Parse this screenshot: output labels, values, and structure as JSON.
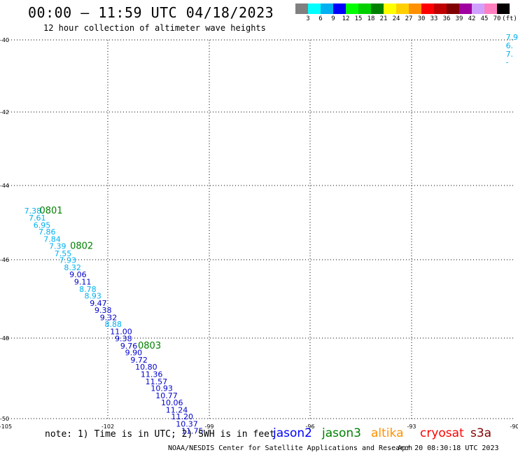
{
  "header": {
    "title": "00:00 — 11:59 UTC 04/18/2023",
    "subtitle": "12 hour collection of altimeter wave heights"
  },
  "legend": {
    "colors": [
      "#808080",
      "#00ffff",
      "#00b0f0",
      "#0000ff",
      "#00ff00",
      "#00d000",
      "#008000",
      "#ffff00",
      "#ffd000",
      "#ff9000",
      "#ff0000",
      "#c00000",
      "#800000",
      "#a000a0",
      "#d0a0ff",
      "#ff80c0",
      "#000000"
    ],
    "values": [
      "3",
      "6",
      "9",
      "12",
      "15",
      "18",
      "21",
      "24",
      "27",
      "30",
      "33",
      "36",
      "39",
      "42",
      "45",
      "70",
      "(ft)"
    ]
  },
  "footer": {
    "note": "note: 1) Time is in UTC; 2) SWH is in feet",
    "satellites": [
      {
        "name": "jason2",
        "color": "#0000ff"
      },
      {
        "name": "jason3",
        "color": "#008000"
      },
      {
        "name": "altika",
        "color": "#ff9000"
      },
      {
        "name": "cryosat",
        "color": "#ff0000"
      },
      {
        "name": "s3a",
        "color": "#800000"
      }
    ],
    "credit": "NOAA/NESDIS Center for Satellite Applications and Research",
    "timestamp": "Apr 20 08:30:18 UTC 2023"
  },
  "chart_data": {
    "type": "scatter",
    "title": "00:00 — 11:59 UTC 04/18/2023",
    "subtitle": "12 hour collection of altimeter wave heights",
    "xlabel": "",
    "ylabel": "",
    "xlim": [
      -105,
      -90
    ],
    "ylim": [
      -50,
      -40
    ],
    "x_ticks": [
      -105,
      -102,
      -99,
      -96,
      -93,
      -90
    ],
    "y_ticks": [
      -40,
      -42,
      -44,
      -46,
      -48,
      -50
    ],
    "grid": true,
    "series": [
      {
        "name": "jason3",
        "color_cyan": "#00b0f0",
        "color_blue": "#0000cc",
        "points": [
          {
            "lon": -104.45,
            "lat": -44.58,
            "swh": "7.38"
          },
          {
            "lon": -104.32,
            "lat": -44.77,
            "swh": "7.61"
          },
          {
            "lon": -104.18,
            "lat": -44.96,
            "swh": "6.95"
          },
          {
            "lon": -104.03,
            "lat": -45.14,
            "swh": "7.86"
          },
          {
            "lon": -103.88,
            "lat": -45.33,
            "swh": "7.84"
          },
          {
            "lon": -103.72,
            "lat": -45.52,
            "swh": "7.39"
          },
          {
            "lon": -103.56,
            "lat": -45.71,
            "swh": "7.55"
          },
          {
            "lon": -103.42,
            "lat": -45.89,
            "swh": "7.93"
          },
          {
            "lon": -103.28,
            "lat": -46.08,
            "swh": "8.32"
          },
          {
            "lon": -103.12,
            "lat": -46.27,
            "swh": "9.06"
          },
          {
            "lon": -102.98,
            "lat": -46.46,
            "swh": "9.11"
          },
          {
            "lon": -102.83,
            "lat": -46.65,
            "swh": "8.78"
          },
          {
            "lon": -102.68,
            "lat": -46.83,
            "swh": "8.93"
          },
          {
            "lon": -102.52,
            "lat": -47.02,
            "swh": "9.47"
          },
          {
            "lon": -102.38,
            "lat": -47.21,
            "swh": "9.38"
          },
          {
            "lon": -102.22,
            "lat": -47.4,
            "swh": "9.32"
          },
          {
            "lon": -102.08,
            "lat": -47.58,
            "swh": "8.88"
          },
          {
            "lon": -101.92,
            "lat": -47.77,
            "swh": "11.00"
          },
          {
            "lon": -101.78,
            "lat": -47.96,
            "swh": "9.38"
          },
          {
            "lon": -101.62,
            "lat": -48.15,
            "swh": "9.76"
          },
          {
            "lon": -101.48,
            "lat": -48.33,
            "swh": "9.90"
          },
          {
            "lon": -101.32,
            "lat": -48.52,
            "swh": "9.72"
          },
          {
            "lon": -101.18,
            "lat": -48.71,
            "swh": "10.80"
          },
          {
            "lon": -101.02,
            "lat": -48.9,
            "swh": "11.36"
          },
          {
            "lon": -100.88,
            "lat": -49.09,
            "swh": "11.57"
          },
          {
            "lon": -100.72,
            "lat": -49.27,
            "swh": "10.93"
          },
          {
            "lon": -100.58,
            "lat": -49.46,
            "swh": "10.77"
          },
          {
            "lon": -100.42,
            "lat": -49.65,
            "swh": "10.06"
          },
          {
            "lon": -100.28,
            "lat": -49.84,
            "swh": "11.24"
          },
          {
            "lon": -100.12,
            "lat": -50.02,
            "swh": "11.20"
          },
          {
            "lon": -99.98,
            "lat": -50.21,
            "swh": "10.37"
          },
          {
            "lon": -99.82,
            "lat": -50.4,
            "swh": "11.75"
          }
        ]
      }
    ],
    "time_labels": [
      {
        "text": "0801",
        "lon": -104.0,
        "lat": -44.58
      },
      {
        "text": "0802",
        "lon": -103.1,
        "lat": -45.52
      },
      {
        "text": "0803",
        "lon": -101.1,
        "lat": -48.15
      }
    ],
    "edge_values": [
      {
        "text": "7.9",
        "lon": -90.05,
        "lat": -40.0
      },
      {
        "text": "6.",
        "lon": -90.05,
        "lat": -40.22
      },
      {
        "text": "7.",
        "lon": -90.05,
        "lat": -40.44
      },
      {
        "text": "-",
        "lon": -90.05,
        "lat": -40.66
      }
    ]
  }
}
